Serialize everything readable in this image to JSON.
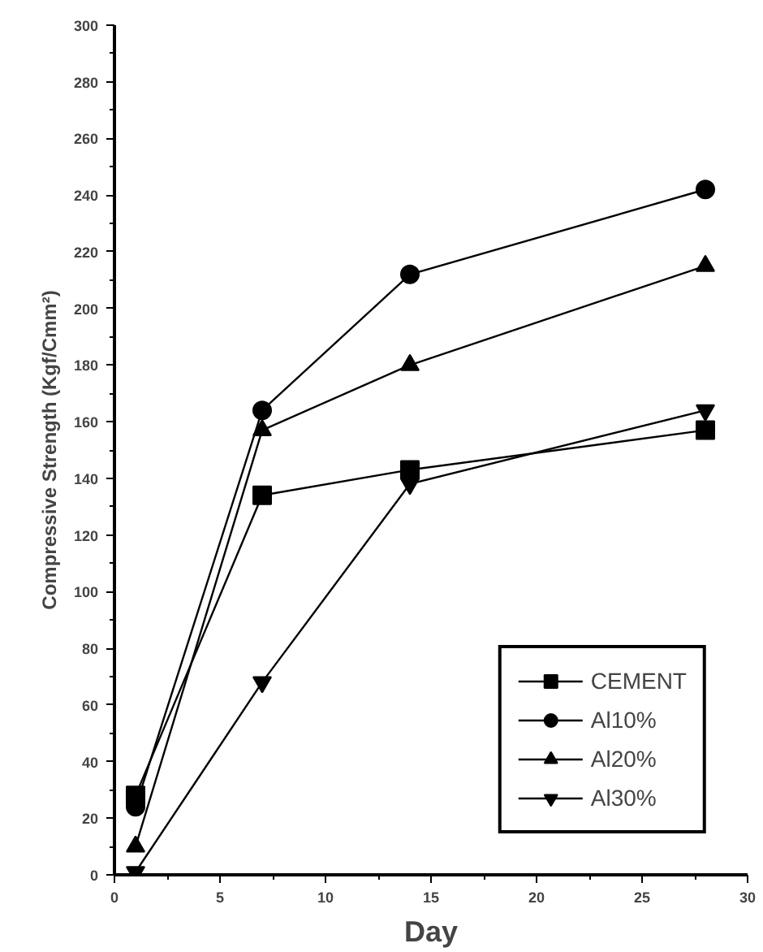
{
  "chart_data": {
    "type": "line",
    "xlabel": "Day",
    "ylabel": "Compressive Strength (Kgf/Cmm²)",
    "xlim": [
      0,
      30
    ],
    "xticks": [
      0,
      5,
      10,
      15,
      20,
      25,
      30
    ],
    "ylim": [
      0,
      300
    ],
    "yticks": [
      0,
      20,
      40,
      60,
      80,
      100,
      120,
      140,
      160,
      180,
      200,
      220,
      240,
      260,
      280,
      300
    ],
    "grid": false,
    "legend": "bottom right",
    "line_style": "solid",
    "series": [
      {
        "name": "CEMENT",
        "color": "#000000",
        "marker": "square",
        "x": [
          1,
          7,
          14,
          28
        ],
        "values": [
          28,
          134,
          143,
          157
        ]
      },
      {
        "name": "Al10%",
        "color": "#000000",
        "marker": "circle",
        "x": [
          1,
          7,
          14,
          28
        ],
        "values": [
          24,
          164,
          212,
          242
        ]
      },
      {
        "name": "Al20%",
        "color": "#000000",
        "marker": "triangle",
        "x": [
          1,
          7,
          14,
          28
        ],
        "values": [
          10,
          157,
          180,
          215
        ]
      },
      {
        "name": "Al30%",
        "color": "#000000",
        "marker": "triangle_down",
        "x": [
          1,
          7,
          14,
          28
        ],
        "values": [
          1,
          68,
          138,
          164
        ]
      }
    ]
  }
}
